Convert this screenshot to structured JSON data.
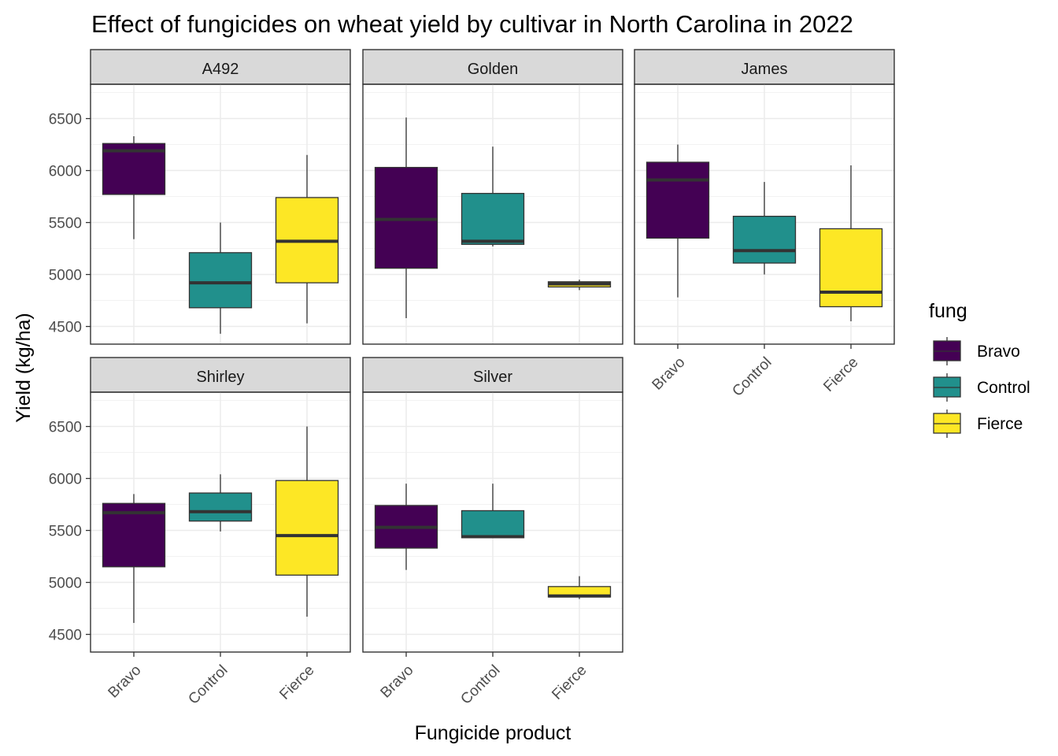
{
  "chart_data": {
    "type": "boxplot",
    "title": "Effect of fungicides on wheat yield by cultivar in North Carolina in 2022",
    "xlabel": "Fungicide product",
    "ylabel": "Yield (kg/ha)",
    "categories": [
      "Bravo",
      "Control",
      "Fierce"
    ],
    "ylim": [
      4330,
      6830
    ],
    "yticks": [
      4500,
      5000,
      5500,
      6000,
      6500
    ],
    "grid": true,
    "legend": {
      "title": "fung",
      "position": "right",
      "entries": [
        {
          "label": "Bravo",
          "color": "#440154"
        },
        {
          "label": "Control",
          "color": "#21908C"
        },
        {
          "label": "Fierce",
          "color": "#FDE725"
        }
      ]
    },
    "panels": [
      {
        "name": "A492",
        "boxes": [
          {
            "category": "Bravo",
            "min": 5340,
            "q1": 5770,
            "median": 6190,
            "q3": 6260,
            "max": 6330
          },
          {
            "category": "Control",
            "min": 4430,
            "q1": 4680,
            "median": 4920,
            "q3": 5210,
            "max": 5500
          },
          {
            "category": "Fierce",
            "min": 4530,
            "q1": 4920,
            "median": 5320,
            "q3": 5740,
            "max": 6150
          }
        ]
      },
      {
        "name": "Golden",
        "boxes": [
          {
            "category": "Bravo",
            "min": 4580,
            "q1": 5060,
            "median": 5530,
            "q3": 6030,
            "max": 6510
          },
          {
            "category": "Control",
            "min": 5270,
            "q1": 5290,
            "median": 5320,
            "q3": 5780,
            "max": 6230
          },
          {
            "category": "Fierce",
            "min": 4850,
            "q1": 4880,
            "median": 4910,
            "q3": 4930,
            "max": 4950
          }
        ]
      },
      {
        "name": "James",
        "boxes": [
          {
            "category": "Bravo",
            "min": 4780,
            "q1": 5350,
            "median": 5910,
            "q3": 6080,
            "max": 6250
          },
          {
            "category": "Control",
            "min": 5000,
            "q1": 5110,
            "median": 5230,
            "q3": 5560,
            "max": 5890
          },
          {
            "category": "Fierce",
            "min": 4550,
            "q1": 4690,
            "median": 4830,
            "q3": 5440,
            "max": 6050
          }
        ]
      },
      {
        "name": "Shirley",
        "boxes": [
          {
            "category": "Bravo",
            "min": 4610,
            "q1": 5150,
            "median": 5670,
            "q3": 5760,
            "max": 5850
          },
          {
            "category": "Control",
            "min": 5490,
            "q1": 5590,
            "median": 5680,
            "q3": 5860,
            "max": 6040
          },
          {
            "category": "Fierce",
            "min": 4670,
            "q1": 5070,
            "median": 5450,
            "q3": 5980,
            "max": 6500
          }
        ]
      },
      {
        "name": "Silver",
        "boxes": [
          {
            "category": "Bravo",
            "min": 5120,
            "q1": 5330,
            "median": 5530,
            "q3": 5740,
            "max": 5950
          },
          {
            "category": "Control",
            "min": 5430,
            "q1": 5430,
            "median": 5440,
            "q3": 5690,
            "max": 5950
          },
          {
            "category": "Fierce",
            "min": 4840,
            "q1": 4860,
            "median": 4870,
            "q3": 4960,
            "max": 5060
          }
        ]
      }
    ]
  }
}
